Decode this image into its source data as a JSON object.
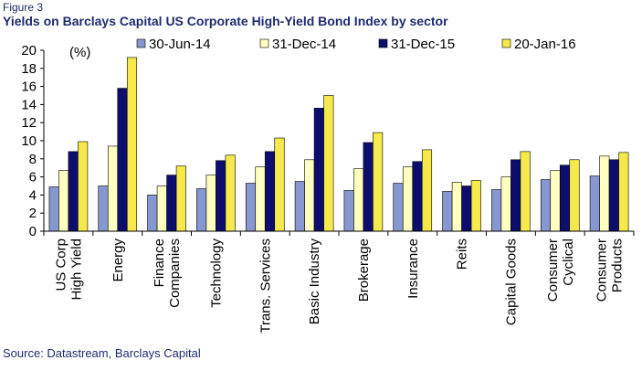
{
  "figure_label": "Figure 3",
  "title": "Yields on Barclays Capital US Corporate High-Yield Bond Index by sector",
  "source": "Source: Datastream, Barclays Capital",
  "chart_data": {
    "type": "bar",
    "unit_label": "(%)",
    "categories": [
      [
        "US Corp",
        "High Yield"
      ],
      [
        "Energy"
      ],
      [
        "Finance",
        "Companies"
      ],
      [
        "Technology"
      ],
      [
        "Trans. Services"
      ],
      [
        "Basic Industry"
      ],
      [
        "Brokerage"
      ],
      [
        "Insurance"
      ],
      [
        "Reits"
      ],
      [
        "Capital Goods"
      ],
      [
        "Consumer",
        "Cyclical"
      ],
      [
        "Consumer",
        "Products"
      ]
    ],
    "series": [
      {
        "name": "30-Jun-14",
        "color": "#8797cf",
        "values": [
          4.9,
          5.0,
          4.0,
          4.7,
          5.3,
          5.5,
          4.5,
          5.3,
          4.4,
          4.6,
          5.7,
          6.1
        ]
      },
      {
        "name": "31-Dec-14",
        "color": "#ffffc0",
        "values": [
          6.7,
          9.4,
          5.0,
          6.2,
          7.1,
          7.9,
          6.9,
          7.1,
          5.4,
          6.0,
          6.7,
          8.3
        ]
      },
      {
        "name": "31-Dec-15",
        "color": "#0d0d6e",
        "values": [
          8.8,
          15.8,
          6.2,
          7.8,
          8.8,
          13.6,
          9.8,
          7.7,
          5.0,
          7.9,
          7.3,
          7.9
        ]
      },
      {
        "name": "20-Jan-16",
        "color": "#f5e94b",
        "values": [
          9.9,
          19.2,
          7.2,
          8.4,
          10.3,
          15.0,
          10.9,
          9.0,
          5.6,
          8.8,
          7.9,
          8.7
        ]
      }
    ],
    "ylim": [
      0,
      20
    ],
    "yticks": [
      0,
      2,
      4,
      6,
      8,
      10,
      12,
      14,
      16,
      18,
      20
    ],
    "grid": false,
    "legend_position": "top"
  }
}
